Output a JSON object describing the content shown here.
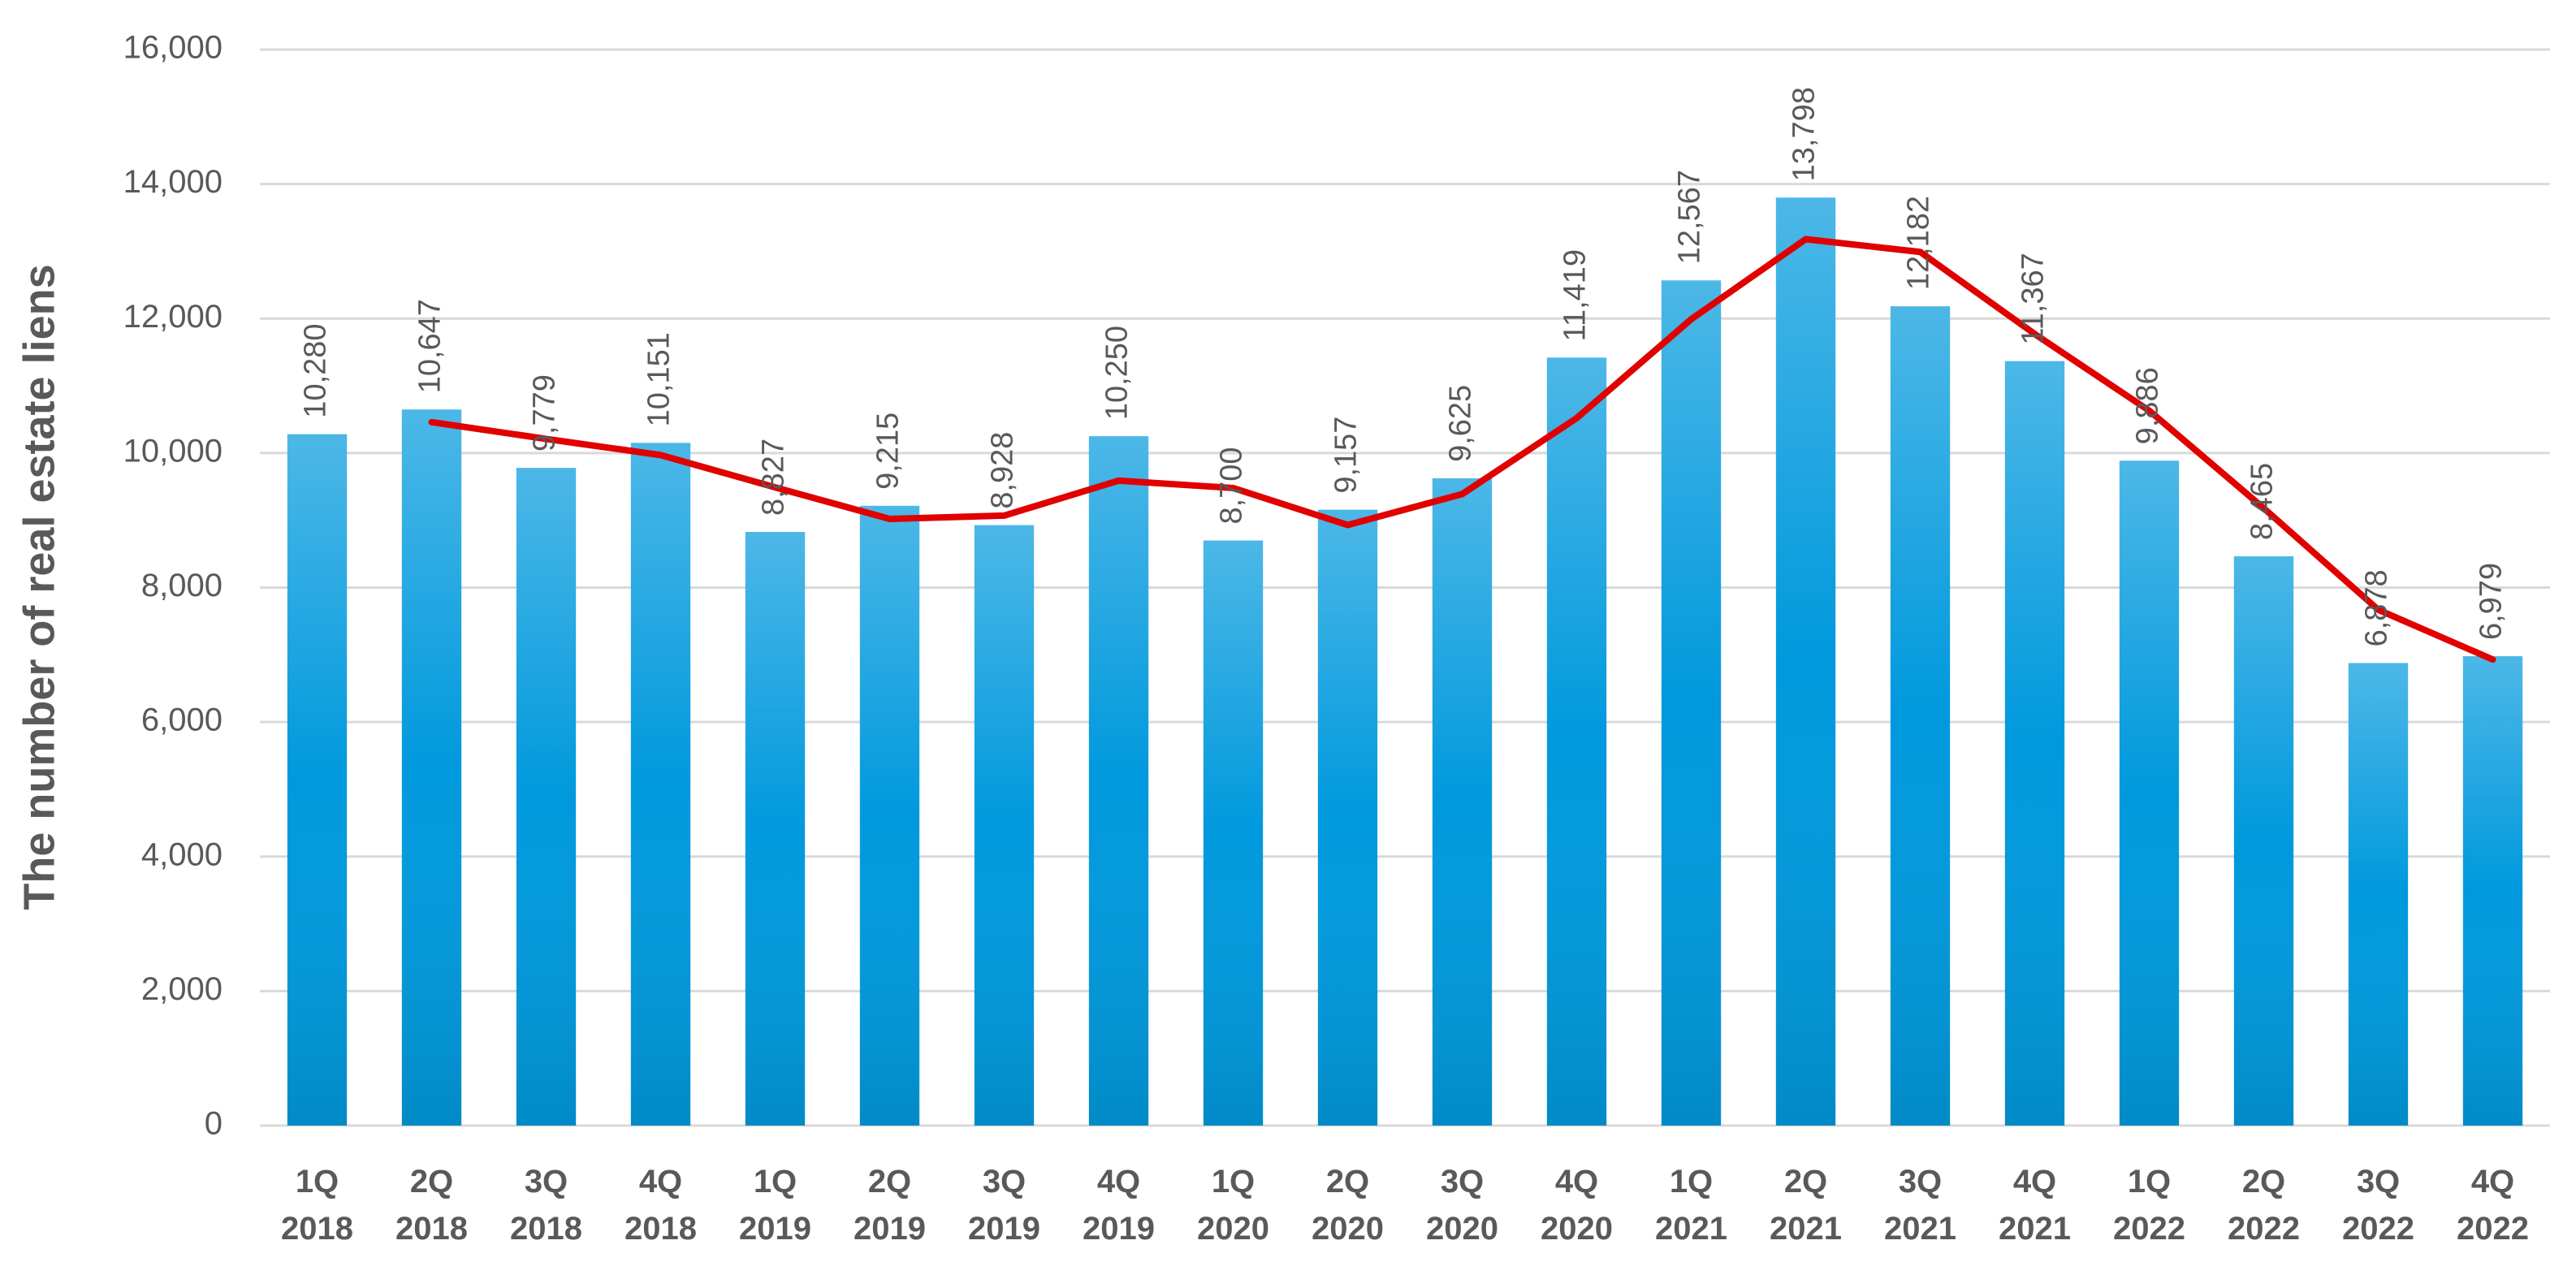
{
  "chart_data": {
    "type": "bar",
    "y_label": "The number of real estate liens",
    "categories": [
      "1Q 2018",
      "2Q 2018",
      "3Q 2018",
      "4Q 2018",
      "1Q 2019",
      "2Q 2019",
      "3Q 2019",
      "4Q 2019",
      "1Q 2020",
      "2Q 2020",
      "3Q 2020",
      "4Q 2020",
      "1Q 2021",
      "2Q 2021",
      "3Q 2021",
      "4Q 2021",
      "1Q 2022",
      "2Q 2022",
      "3Q 2022",
      "4Q 2022"
    ],
    "series": [
      {
        "type": "bar",
        "color": "#0099dd",
        "values": [
          10280,
          10647,
          9779,
          10151,
          8827,
          9215,
          8928,
          10250,
          8700,
          9157,
          9625,
          11419,
          12567,
          13798,
          12182,
          11367,
          9886,
          8465,
          6878,
          6979
        ],
        "value_labels": [
          "10,280",
          "10,647",
          "9,779",
          "10,151",
          "8,827",
          "9,215",
          "8,928",
          "10,250",
          "8,700",
          "9,157",
          "9,625",
          "11,419",
          "12,567",
          "13,798",
          "12,182",
          "11,367",
          "9,886",
          "8,465",
          "6,878",
          "6,979"
        ]
      },
      {
        "type": "line",
        "color": "#e00000",
        "values": [
          null,
          10460,
          10210,
          9970,
          9490,
          9020,
          9070,
          9590,
          9480,
          8930,
          9390,
          10520,
          11990,
          13180,
          12990,
          11770,
          10630,
          9180,
          7670,
          6930
        ]
      }
    ],
    "ylim": [
      0,
      16000
    ],
    "yticks": [
      0,
      {
        "value": 2000,
        "label": "2,000"
      },
      {
        "value": 4000,
        "label": "4,000"
      },
      {
        "value": 6000,
        "label": "6,000"
      },
      {
        "value": 8000,
        "label": "8,000"
      },
      {
        "value": 10000,
        "label": "10,000"
      },
      {
        "value": 12000,
        "label": "12,000"
      },
      {
        "value": 14000,
        "label": "14,000"
      },
      {
        "value": 16000,
        "label": "16,000"
      }
    ],
    "grid": true
  }
}
